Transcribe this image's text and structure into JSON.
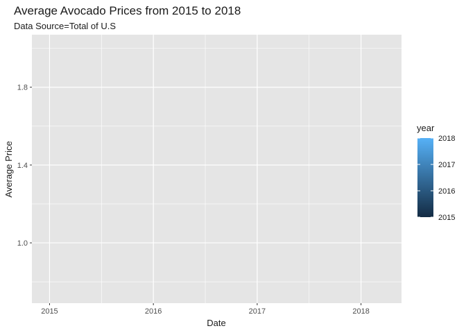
{
  "chart_data": {
    "type": "line",
    "title": "Average Avocado Prices from 2015 to 2018",
    "subtitle": "Data Source=Total of U.S",
    "xlabel": "Date",
    "ylabel": "Average Price",
    "x_ticks": [
      "2015",
      "2016",
      "2017",
      "2018"
    ],
    "x_tick_values": [
      2015,
      2016,
      2017,
      2018
    ],
    "xlim": [
      2014.83,
      2018.39
    ],
    "y_ticks": [
      "1.0",
      "1.4",
      "1.8"
    ],
    "y_tick_values": [
      1.0,
      1.4,
      1.8
    ],
    "ylim": [
      0.69,
      2.07
    ],
    "series": [],
    "grid": true,
    "legend": {
      "title": "year",
      "position": "right",
      "type": "colorbar",
      "labels": [
        "2018",
        "2017",
        "2016",
        "2015"
      ],
      "values": [
        2018,
        2017,
        2016,
        2015
      ],
      "range": [
        2015,
        2018
      ],
      "colors": [
        "#132B43",
        "#56B1F7"
      ]
    },
    "panel_color": "#e5e5e5",
    "grid_color": "#ffffff"
  }
}
